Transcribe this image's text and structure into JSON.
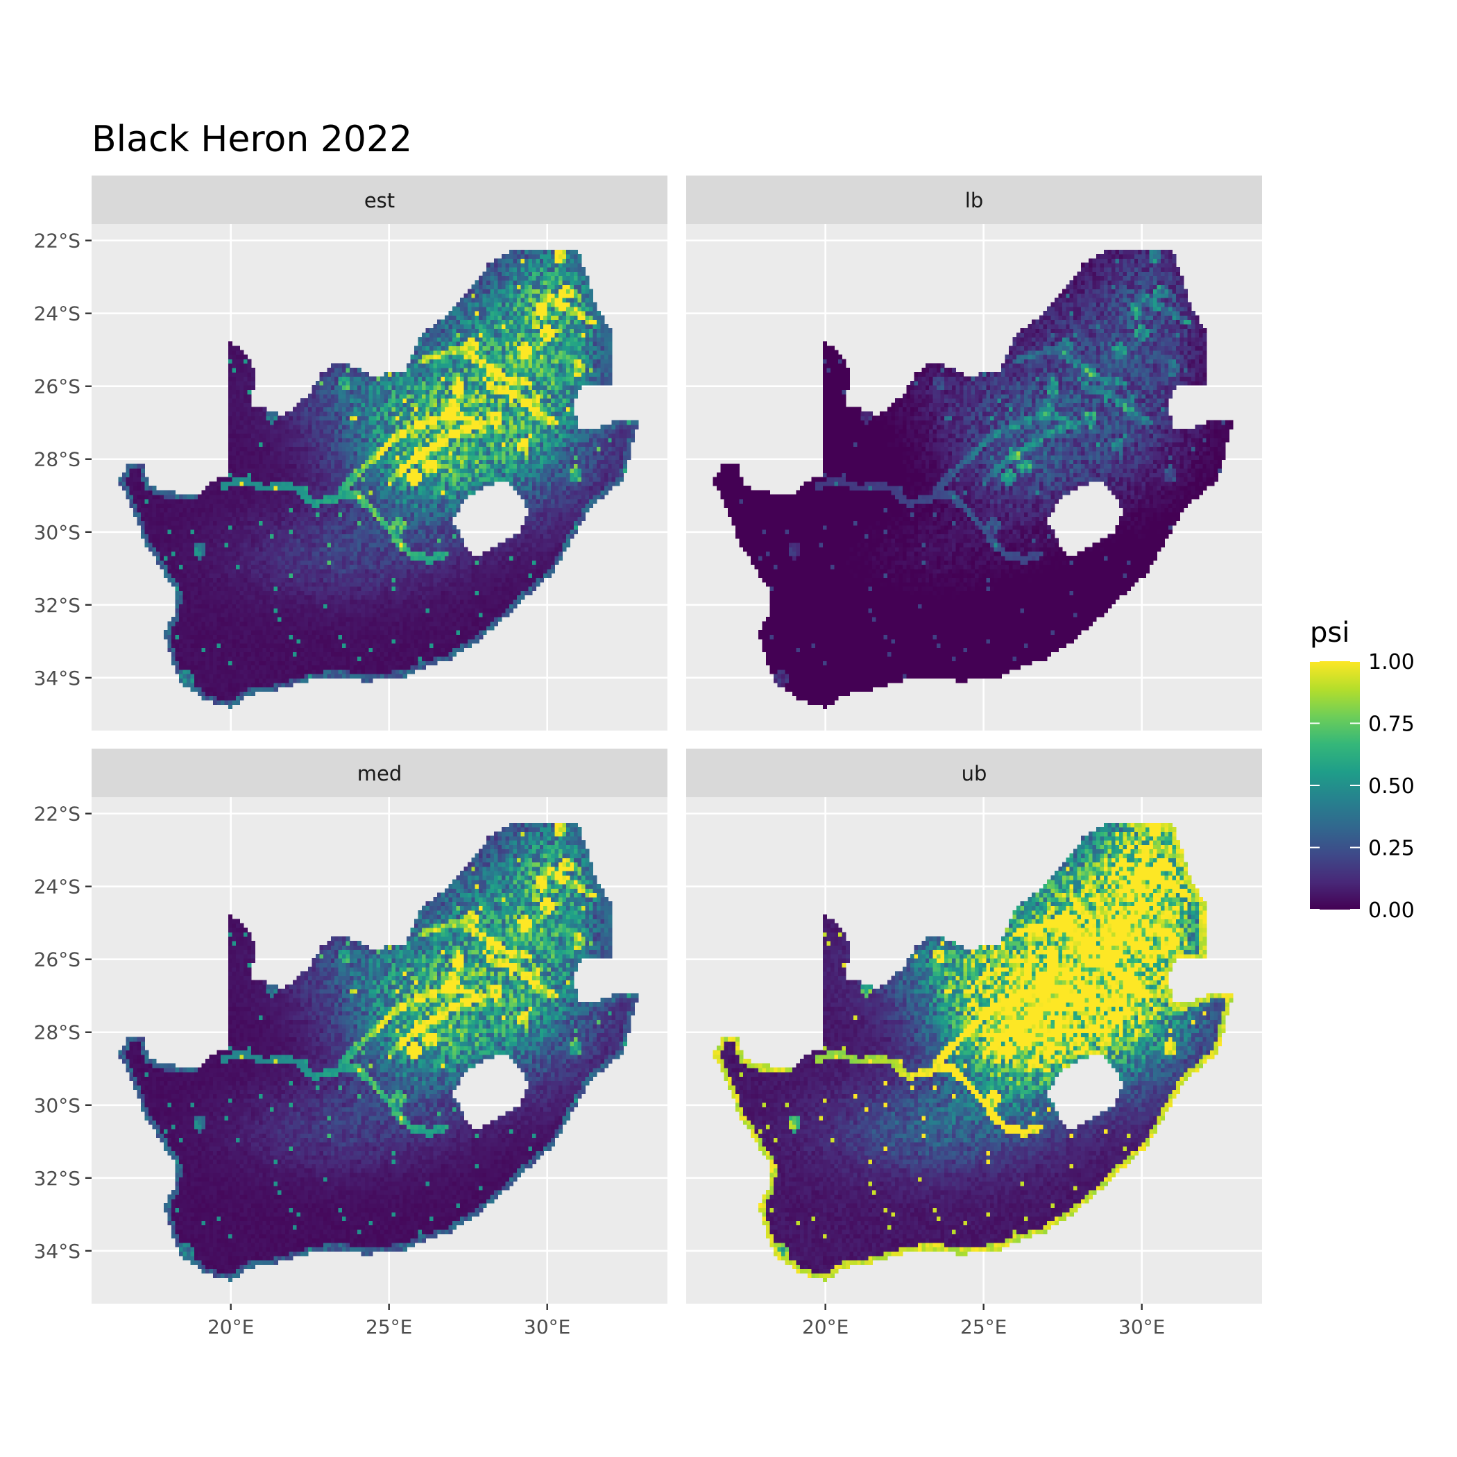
{
  "title": "Black Heron 2022",
  "map": {
    "lon_range": [
      15.6,
      33.8
    ],
    "lat_range": [
      -35.45,
      -21.55
    ],
    "lon_ticks": [
      {
        "value": 20,
        "label": "20°E"
      },
      {
        "value": 25,
        "label": "25°E"
      },
      {
        "value": 30,
        "label": "30°E"
      }
    ],
    "lat_ticks": [
      {
        "value": -22,
        "label": "22°S"
      },
      {
        "value": -24,
        "label": "24°S"
      },
      {
        "value": -26,
        "label": "26°S"
      },
      {
        "value": -28,
        "label": "28°S"
      },
      {
        "value": -30,
        "label": "30°S"
      },
      {
        "value": -32,
        "label": "32°S"
      },
      {
        "value": -34,
        "label": "34°S"
      }
    ],
    "panels": [
      {
        "label": "est",
        "intensity": 1.0
      },
      {
        "label": "lb",
        "intensity": 0.45
      },
      {
        "label": "med",
        "intensity": 0.95
      },
      {
        "label": "ub",
        "intensity": 1.7
      }
    ],
    "boundary": [
      [
        16.45,
        -28.6
      ],
      [
        16.8,
        -28.1
      ],
      [
        17.2,
        -28.1
      ],
      [
        17.4,
        -28.7
      ],
      [
        18.0,
        -28.9
      ],
      [
        19.0,
        -28.95
      ],
      [
        19.6,
        -28.5
      ],
      [
        19.9,
        -28.5
      ],
      [
        19.95,
        -24.8
      ],
      [
        20.4,
        -25.0
      ],
      [
        20.8,
        -25.6
      ],
      [
        20.6,
        -26.5
      ],
      [
        21.7,
        -26.8
      ],
      [
        22.5,
        -26.2
      ],
      [
        22.8,
        -25.7
      ],
      [
        23.4,
        -25.3
      ],
      [
        24.5,
        -25.7
      ],
      [
        25.5,
        -25.6
      ],
      [
        26.0,
        -24.6
      ],
      [
        26.9,
        -24.0
      ],
      [
        27.6,
        -23.3
      ],
      [
        28.2,
        -22.6
      ],
      [
        29.1,
        -22.2
      ],
      [
        29.9,
        -22.2
      ],
      [
        31.0,
        -22.3
      ],
      [
        31.5,
        -23.7
      ],
      [
        32.0,
        -24.5
      ],
      [
        32.0,
        -26.0
      ],
      [
        31.5,
        -26.0
      ],
      [
        31.2,
        -25.9
      ],
      [
        30.8,
        -26.4
      ],
      [
        31.0,
        -27.2
      ],
      [
        31.4,
        -27.2
      ],
      [
        32.0,
        -27.0
      ],
      [
        32.3,
        -26.9
      ],
      [
        32.9,
        -26.9
      ],
      [
        32.6,
        -27.9
      ],
      [
        32.4,
        -28.6
      ],
      [
        31.9,
        -28.9
      ],
      [
        31.3,
        -29.4
      ],
      [
        30.9,
        -30.0
      ],
      [
        30.6,
        -30.5
      ],
      [
        30.2,
        -31.1
      ],
      [
        29.3,
        -31.8
      ],
      [
        28.6,
        -32.4
      ],
      [
        27.8,
        -33.0
      ],
      [
        26.9,
        -33.5
      ],
      [
        26.0,
        -33.75
      ],
      [
        25.6,
        -33.95
      ],
      [
        25.0,
        -34.0
      ],
      [
        24.2,
        -34.1
      ],
      [
        23.5,
        -33.95
      ],
      [
        22.8,
        -34.0
      ],
      [
        22.1,
        -34.15
      ],
      [
        21.4,
        -34.35
      ],
      [
        20.6,
        -34.45
      ],
      [
        20.0,
        -34.8
      ],
      [
        19.3,
        -34.65
      ],
      [
        18.8,
        -34.35
      ],
      [
        18.45,
        -34.2
      ],
      [
        18.3,
        -33.9
      ],
      [
        18.0,
        -33.2
      ],
      [
        17.9,
        -32.7
      ],
      [
        18.2,
        -32.3
      ],
      [
        18.3,
        -31.7
      ],
      [
        17.8,
        -31.0
      ],
      [
        17.3,
        -30.3
      ],
      [
        16.9,
        -29.4
      ],
      [
        16.45,
        -28.6
      ]
    ],
    "lesotho": [
      [
        27.0,
        -29.65
      ],
      [
        27.4,
        -29.1
      ],
      [
        28.1,
        -28.7
      ],
      [
        28.7,
        -28.6
      ],
      [
        29.2,
        -29.0
      ],
      [
        29.4,
        -29.5
      ],
      [
        29.1,
        -30.0
      ],
      [
        28.6,
        -30.3
      ],
      [
        28.0,
        -30.6
      ],
      [
        27.6,
        -30.6
      ],
      [
        27.3,
        -30.2
      ],
      [
        27.0,
        -29.65
      ]
    ],
    "rivers": [
      [
        [
          19.8,
          -28.7
        ],
        [
          20.5,
          -28.6
        ],
        [
          21.1,
          -28.8
        ],
        [
          21.6,
          -28.7
        ],
        [
          22.1,
          -28.8
        ],
        [
          22.6,
          -29.2
        ],
        [
          23.1,
          -29.1
        ],
        [
          23.5,
          -29.0
        ],
        [
          24.0,
          -28.95
        ]
      ],
      [
        [
          23.5,
          -28.9
        ],
        [
          24.1,
          -28.3
        ],
        [
          24.7,
          -27.8
        ],
        [
          25.2,
          -27.4
        ],
        [
          25.8,
          -27.1
        ],
        [
          26.4,
          -26.9
        ],
        [
          27.0,
          -26.8
        ],
        [
          27.5,
          -26.9
        ],
        [
          28.0,
          -27.1
        ]
      ],
      [
        [
          24.0,
          -29.0
        ],
        [
          24.5,
          -29.4
        ],
        [
          24.9,
          -29.8
        ],
        [
          25.3,
          -30.25
        ],
        [
          25.7,
          -30.6
        ],
        [
          26.3,
          -30.75
        ],
        [
          26.8,
          -30.6
        ]
      ],
      [
        [
          25.0,
          -28.6
        ],
        [
          25.5,
          -28.2
        ],
        [
          26.0,
          -27.9
        ],
        [
          26.5,
          -27.6
        ],
        [
          27.0,
          -27.3
        ],
        [
          27.6,
          -27.1
        ]
      ],
      [
        [
          26.0,
          -25.3
        ],
        [
          26.6,
          -25.1
        ],
        [
          27.2,
          -25.0
        ],
        [
          27.8,
          -25.3
        ],
        [
          28.4,
          -25.6
        ],
        [
          28.9,
          -25.9
        ],
        [
          29.4,
          -25.9
        ]
      ],
      [
        [
          30.0,
          -23.5
        ],
        [
          30.5,
          -23.8
        ],
        [
          31.0,
          -24.0
        ],
        [
          31.4,
          -24.2
        ]
      ],
      [
        [
          28.2,
          -26.0
        ],
        [
          29.0,
          -26.2
        ],
        [
          29.6,
          -26.7
        ],
        [
          30.2,
          -27.0
        ]
      ]
    ],
    "hotspots": [
      [
        25.8,
        -28.5,
        0.9
      ],
      [
        26.3,
        -28.2,
        0.85
      ],
      [
        26.0,
        -27.8,
        0.7
      ],
      [
        27.2,
        -26.0,
        0.8
      ],
      [
        28.4,
        -26.9,
        0.95
      ],
      [
        29.3,
        -25.0,
        0.7
      ],
      [
        29.8,
        -23.9,
        0.9
      ],
      [
        30.6,
        -23.4,
        0.8
      ],
      [
        30.0,
        -24.5,
        0.8
      ],
      [
        31.0,
        -25.5,
        0.7
      ],
      [
        28.3,
        -25.6,
        0.6
      ],
      [
        27.6,
        -24.9,
        0.6
      ],
      [
        27.0,
        -26.6,
        0.7
      ],
      [
        25.3,
        -29.8,
        0.5
      ],
      [
        29.6,
        -26.5,
        0.6
      ],
      [
        30.4,
        -22.4,
        0.9
      ],
      [
        19.0,
        -30.5,
        0.5
      ],
      [
        18.6,
        -34.0,
        0.5
      ],
      [
        29.2,
        -27.6,
        0.6
      ],
      [
        30.9,
        -28.4,
        0.5
      ],
      [
        21.3,
        -26.8,
        0.4
      ],
      [
        23.6,
        -25.9,
        0.4
      ]
    ],
    "core": [
      [
        26.2,
        -28.0,
        2.4,
        1.8,
        0.55
      ],
      [
        28.4,
        -25.2,
        3.2,
        2.4,
        0.45
      ],
      [
        30.3,
        -23.6,
        1.6,
        2.0,
        0.45
      ],
      [
        29.6,
        -27.4,
        2.4,
        2.0,
        0.3
      ],
      [
        24.4,
        -26.2,
        2.6,
        1.3,
        0.22
      ],
      [
        23.5,
        -30.6,
        3.0,
        1.2,
        0.15
      ]
    ]
  },
  "legend": {
    "title": "psi",
    "ticks": [
      {
        "value": 1.0,
        "label": "1.00"
      },
      {
        "value": 0.75,
        "label": "0.75"
      },
      {
        "value": 0.5,
        "label": "0.50"
      },
      {
        "value": 0.25,
        "label": "0.25"
      },
      {
        "value": 0.0,
        "label": "0.00"
      }
    ],
    "colors": [
      "#440154",
      "#482878",
      "#3e4a89",
      "#31688e",
      "#26828e",
      "#1f9e89",
      "#35b779",
      "#6ece58",
      "#b5de2b",
      "#fde725"
    ]
  }
}
